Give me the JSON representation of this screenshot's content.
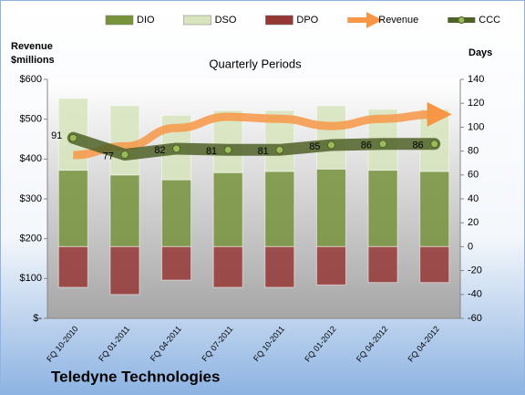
{
  "chart_data": {
    "type": "bar",
    "title": "Quarterly Periods",
    "y_label": [
      "Revenue",
      "$millions"
    ],
    "y2_label": "Days",
    "footer": "Teledyne Technologies",
    "categories": [
      "FQ 10-2010",
      "FQ 01-2011",
      "FQ 04-2011",
      "FQ 07-2011",
      "FQ 10-2011",
      "FQ 01-2012",
      "FQ 04-2012",
      "FQ 04-2012"
    ],
    "series": [
      {
        "name": "DIO",
        "type": "bar",
        "axis": "y2",
        "color": "#77933c",
        "values": [
          64,
          60,
          56,
          62,
          63,
          65,
          64,
          63
        ]
      },
      {
        "name": "DSO",
        "type": "bar",
        "axis": "y2",
        "color": "#d7e4bd",
        "values": [
          60,
          58,
          54,
          52,
          51,
          53,
          51,
          52
        ]
      },
      {
        "name": "DPO",
        "type": "bar",
        "axis": "y2",
        "color": "#953735",
        "values": [
          -34,
          -40,
          -28,
          -34,
          -34,
          -32,
          -30,
          -30
        ]
      },
      {
        "name": "Revenue",
        "type": "arrow",
        "axis": "y",
        "color": "#f79646",
        "values": [
          410,
          432,
          478,
          506,
          501,
          483,
          501,
          512
        ]
      },
      {
        "name": "CCC",
        "type": "line",
        "axis": "y2",
        "color": "#4f6228",
        "values": [
          91,
          77,
          82,
          81,
          81,
          85,
          86,
          86
        ]
      }
    ],
    "ylim": [
      0,
      600
    ],
    "yticks": [
      {
        "value": 0,
        "label": "$-"
      },
      {
        "value": 100,
        "label": "$100"
      },
      {
        "value": 200,
        "label": "$200"
      },
      {
        "value": 300,
        "label": "$300"
      },
      {
        "value": 400,
        "label": "$400"
      },
      {
        "value": 500,
        "label": "$500"
      },
      {
        "value": 600,
        "label": "$600"
      }
    ],
    "y2lim": [
      -60,
      140
    ],
    "y2ticks": [
      -60,
      -40,
      -20,
      0,
      20,
      40,
      60,
      80,
      100,
      120,
      140
    ],
    "legend": "top"
  }
}
